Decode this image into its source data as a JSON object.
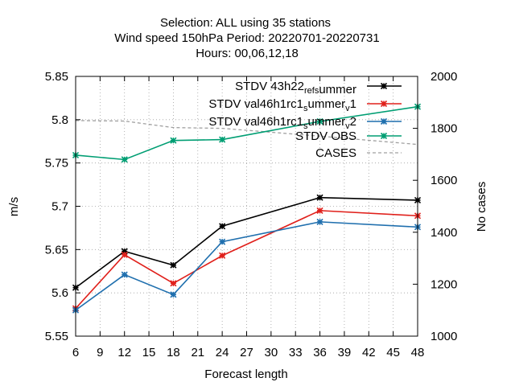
{
  "chart_data": {
    "type": "line",
    "title_lines": [
      "Selection: ALL using    35 stations",
      "Wind speed 150hPa   Period: 20220701-20220731",
      "Hours:  00,06,12,18"
    ],
    "xlabel": "Forecast length",
    "ylabel": "m/s",
    "y2label": "No cases",
    "xlim": [
      6,
      48
    ],
    "ylim": [
      5.55,
      5.85
    ],
    "y2lim": [
      1000,
      2000
    ],
    "x_ticks": [
      "6",
      "9",
      "12",
      "15",
      "18",
      "21",
      "24",
      "27",
      "30",
      "33",
      "36",
      "39",
      "42",
      "45",
      "48"
    ],
    "y_ticks": [
      "5.55",
      "5.6",
      "5.65",
      "5.7",
      "5.75",
      "5.8",
      "5.85"
    ],
    "y2_ticks": [
      "1000",
      "1200",
      "1400",
      "1600",
      "1800",
      "2000"
    ],
    "grid": true,
    "legend_position": "top-right",
    "series": [
      {
        "name": "STDV 43h22_ref_summer",
        "legend": {
          "parts": [
            [
              "STDV 43h22",
              ""
            ],
            [
              "ref",
              "sub"
            ],
            [
              "s",
              "sub-open"
            ],
            [
              "ummer",
              ""
            ]
          ]
        },
        "color": "#000000",
        "axis": "y",
        "x": [
          6,
          12,
          18,
          24,
          36,
          48
        ],
        "values": [
          5.606,
          5.648,
          5.632,
          5.677,
          5.71,
          5.707
        ]
      },
      {
        "name": "STDV val46h1rc1_summer_v1",
        "legend": {
          "parts": [
            [
              "STDV val46h1rc1",
              ""
            ],
            [
              "s",
              "sub"
            ],
            [
              "ummer",
              ""
            ],
            [
              "v",
              "sub"
            ],
            [
              "1",
              ""
            ]
          ]
        },
        "color": "#e0201b",
        "axis": "y",
        "x": [
          6,
          12,
          18,
          24,
          36,
          48
        ],
        "values": [
          5.582,
          5.644,
          5.611,
          5.643,
          5.695,
          5.689
        ]
      },
      {
        "name": "STDV val46h1rc1_summer_v2",
        "legend": {
          "parts": [
            [
              "STDV val46h1rc1",
              ""
            ],
            [
              "s",
              "sub"
            ],
            [
              "ummer",
              ""
            ],
            [
              "v",
              "sub"
            ],
            [
              "2",
              ""
            ]
          ]
        },
        "color": "#1f6fae",
        "axis": "y",
        "x": [
          6,
          12,
          18,
          24,
          36,
          48
        ],
        "values": [
          5.58,
          5.621,
          5.598,
          5.659,
          5.682,
          5.676
        ]
      },
      {
        "name": "STDV OBS",
        "legend": {
          "parts": [
            [
              "STDV OBS",
              ""
            ]
          ]
        },
        "color": "#009e73",
        "axis": "y",
        "x": [
          6,
          12,
          18,
          24,
          36,
          48
        ],
        "values": [
          5.759,
          5.754,
          5.776,
          5.777,
          5.798,
          5.815
        ]
      },
      {
        "name": "CASES",
        "legend": {
          "parts": [
            [
              "CASES",
              ""
            ]
          ]
        },
        "color": "#a0a0a0",
        "axis": "y2",
        "dashed": true,
        "x": [
          6,
          12,
          18,
          24,
          36,
          48
        ],
        "values": [
          1830,
          1828,
          1803,
          1800,
          1770,
          1738
        ]
      }
    ]
  }
}
